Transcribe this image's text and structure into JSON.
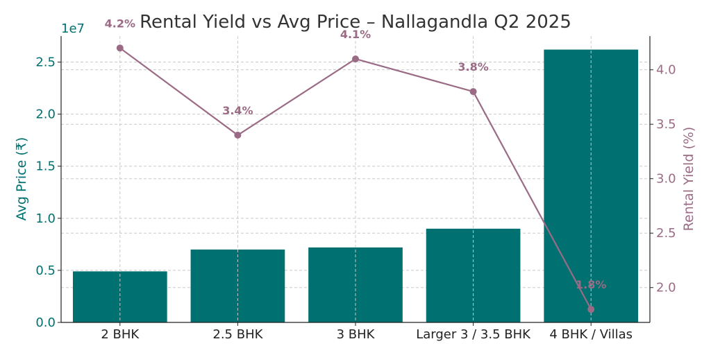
{
  "chart_data": {
    "type": "bar",
    "title": "Rental Yield vs Avg Price – Nallagandla Q2 2025",
    "categories": [
      "2 BHK",
      "2.5 BHK",
      "3 BHK",
      "Larger 3 / 3.5 BHK",
      "4 BHK / Villas"
    ],
    "series": [
      {
        "name": "Avg Price (₹)",
        "type": "bar",
        "axis": "left",
        "values": [
          4900000,
          7000000,
          7200000,
          9000000,
          26200000
        ],
        "color": "#007070"
      },
      {
        "name": "Rental Yield (%)",
        "type": "line",
        "axis": "right",
        "values": [
          4.2,
          3.4,
          4.1,
          3.8,
          1.8
        ],
        "data_labels": [
          "4.2%",
          "3.4%",
          "4.1%",
          "3.8%",
          "1.8%"
        ],
        "color": "#9b6b86"
      }
    ],
    "ylabel": "Avg Price (₹)",
    "ylabel_right": "Rental Yield (%)",
    "y_offset_label": "1e7",
    "ylim": [
      0,
      27500000
    ],
    "ylim_right": [
      1.68,
      4.31
    ],
    "yticks": [
      0,
      5000000,
      10000000,
      15000000,
      20000000,
      25000000
    ],
    "ytick_labels": [
      "0.0",
      "0.5",
      "1.0",
      "1.5",
      "2.0",
      "2.5"
    ],
    "yticks_right": [
      2.0,
      2.5,
      3.0,
      3.5,
      4.0
    ],
    "ytick_labels_right": [
      "2.0",
      "2.5",
      "3.0",
      "3.5",
      "4.0"
    ],
    "grid": true
  }
}
